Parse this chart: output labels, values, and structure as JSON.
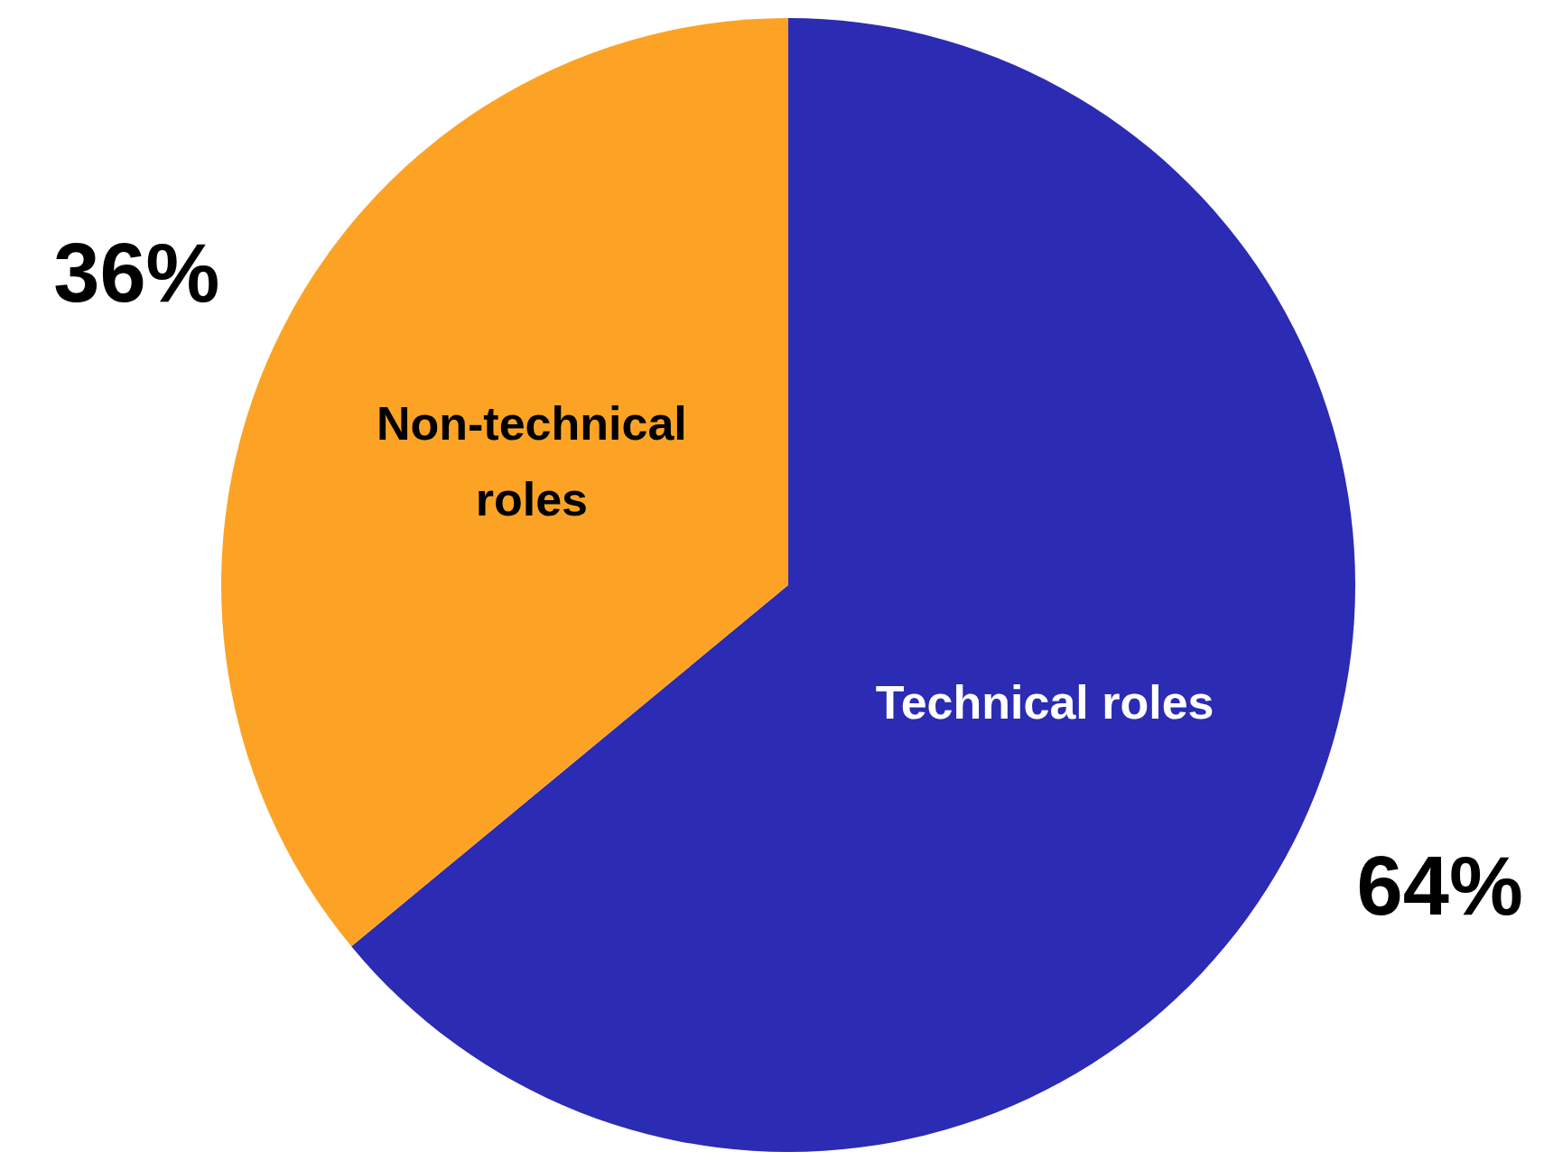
{
  "chart_data": {
    "type": "pie",
    "categories": [
      "Technical roles",
      "Non-technical roles"
    ],
    "values": [
      64,
      36
    ],
    "colors": [
      "#2b2bb3",
      "#fca326"
    ],
    "value_labels": [
      "64%",
      "36%"
    ],
    "legend": false
  }
}
